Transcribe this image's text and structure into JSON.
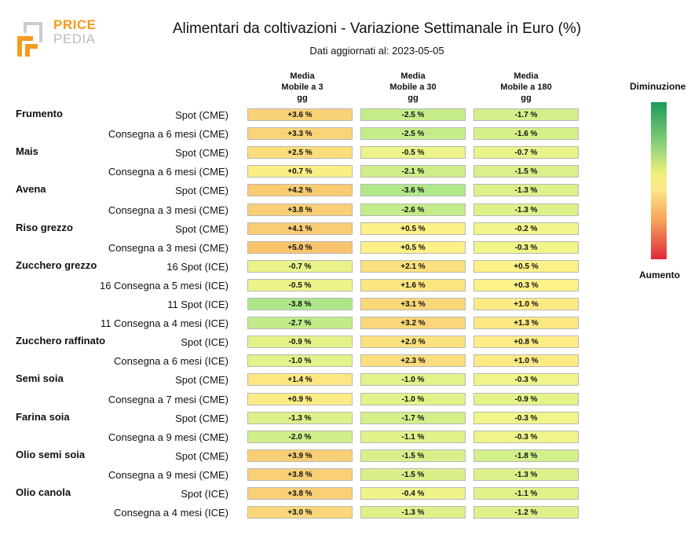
{
  "logo": {
    "top": "PRICE",
    "bottom": "PEDIA"
  },
  "title": "Alimentari da coltivazioni - Variazione Settimanale in Euro (%)",
  "subtitle": "Dati aggiornati al: 2023-05-05",
  "legend": {
    "top": "Diminuzione",
    "bottom": "Aumento"
  },
  "chart_data": {
    "type": "table",
    "columns": [
      {
        "lines": [
          "Media",
          "Mobile a 3",
          "gg"
        ]
      },
      {
        "lines": [
          "Media",
          "Mobile a 30",
          "gg"
        ]
      },
      {
        "lines": [
          "Media",
          "Mobile a 180",
          "gg"
        ]
      }
    ],
    "groups": [
      {
        "name": "Frumento",
        "rows": [
          {
            "label": "Spot (CME)",
            "values": [
              "+3.6 %",
              "-2.5 %",
              "-1.7 %"
            ]
          },
          {
            "label": "Consegna a 6 mesi (CME)",
            "values": [
              "+3.3 %",
              "-2.5 %",
              "-1.6 %"
            ]
          }
        ]
      },
      {
        "name": "Mais",
        "rows": [
          {
            "label": "Spot (CME)",
            "values": [
              "+2.5 %",
              "-0.5 %",
              "-0.7 %"
            ]
          },
          {
            "label": "Consegna a 6 mesi (CME)",
            "values": [
              "+0.7 %",
              "-2.1 %",
              "-1.5 %"
            ]
          }
        ]
      },
      {
        "name": "Avena",
        "rows": [
          {
            "label": "Spot (CME)",
            "values": [
              "+4.2 %",
              "-3.6 %",
              "-1.3 %"
            ]
          },
          {
            "label": "Consegna a 3 mesi (CME)",
            "values": [
              "+3.8 %",
              "-2.6 %",
              "-1.3 %"
            ]
          }
        ]
      },
      {
        "name": "Riso grezzo",
        "rows": [
          {
            "label": "Spot (CME)",
            "values": [
              "+4.1 %",
              "+0.5 %",
              "-0.2 %"
            ]
          },
          {
            "label": "Consegna a 3 mesi (CME)",
            "values": [
              "+5.0 %",
              "+0.5 %",
              "-0.3 %"
            ]
          }
        ]
      },
      {
        "name": "Zucchero grezzo",
        "rows": [
          {
            "label": "16 Spot (ICE)",
            "values": [
              "-0.7 %",
              "+2.1 %",
              "+0.5 %"
            ]
          },
          {
            "label": "16 Consegna a 5 mesi (ICE)",
            "values": [
              "-0.5 %",
              "+1.6 %",
              "+0.3 %"
            ]
          },
          {
            "label": "11 Spot (ICE)",
            "values": [
              "-3.8 %",
              "+3.1 %",
              "+1.0 %"
            ]
          },
          {
            "label": "11 Consegna a 4 mesi (ICE)",
            "values": [
              "-2.7 %",
              "+3.2 %",
              "+1.3 %"
            ]
          }
        ]
      },
      {
        "name": "Zucchero raffinato",
        "rows": [
          {
            "label": "Spot (ICE)",
            "values": [
              "-0.9 %",
              "+2.0 %",
              "+0.8 %"
            ]
          },
          {
            "label": "Consegna a 6 mesi (ICE)",
            "values": [
              "-1.0 %",
              "+2.3 %",
              "+1.0 %"
            ]
          }
        ]
      },
      {
        "name": "Semi soia",
        "rows": [
          {
            "label": "Spot (CME)",
            "values": [
              "+1.4 %",
              "-1.0 %",
              "-0.3 %"
            ]
          },
          {
            "label": "Consegna a 7 mesi (CME)",
            "values": [
              "+0.9 %",
              "-1.0 %",
              "-0.9 %"
            ]
          }
        ]
      },
      {
        "name": "Farina soia",
        "rows": [
          {
            "label": "Spot (CME)",
            "values": [
              "-1.3 %",
              "-1.7 %",
              "-0.3 %"
            ]
          },
          {
            "label": "Consegna a 9 mesi (CME)",
            "values": [
              "-2.0 %",
              "-1.1 %",
              "-0.3 %"
            ]
          }
        ]
      },
      {
        "name": "Olio semi soia",
        "rows": [
          {
            "label": "Spot (CME)",
            "values": [
              "+3.9 %",
              "-1.5 %",
              "-1.8 %"
            ]
          },
          {
            "label": "Consegna a 9 mesi (CME)",
            "values": [
              "+3.8 %",
              "-1.5 %",
              "-1.3 %"
            ]
          }
        ]
      },
      {
        "name": "Olio canola",
        "rows": [
          {
            "label": "Spot (ICE)",
            "values": [
              "+3.8 %",
              "-0.4 %",
              "-1.1 %"
            ]
          },
          {
            "label": "Consegna a 4 mesi (ICE)",
            "values": [
              "+3.0 %",
              "-1.3 %",
              "-1.2 %"
            ]
          }
        ]
      }
    ]
  }
}
